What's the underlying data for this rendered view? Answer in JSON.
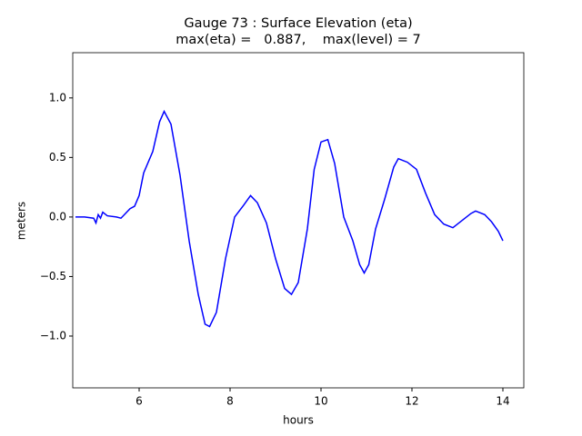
{
  "chart_data": {
    "type": "line",
    "title": [
      "Gauge 73 : Surface Elevation (eta)",
      "max(eta) =   0.887,    max(level) = 7"
    ],
    "xlabel": "hours",
    "ylabel": "meters",
    "x": [
      4.6,
      4.8,
      5.0,
      5.05,
      5.1,
      5.15,
      5.2,
      5.3,
      5.5,
      5.6,
      5.7,
      5.8,
      5.9,
      6.0,
      6.1,
      6.3,
      6.45,
      6.55,
      6.7,
      6.9,
      7.1,
      7.3,
      7.45,
      7.55,
      7.7,
      7.9,
      8.1,
      8.3,
      8.45,
      8.6,
      8.8,
      9.0,
      9.2,
      9.35,
      9.5,
      9.7,
      9.85,
      10.0,
      10.15,
      10.3,
      10.5,
      10.7,
      10.85,
      10.95,
      11.05,
      11.2,
      11.4,
      11.6,
      11.7,
      11.9,
      12.1,
      12.3,
      12.5,
      12.7,
      12.9,
      13.1,
      13.3,
      13.4,
      13.6,
      13.75,
      13.9,
      14.0
    ],
    "series": [
      {
        "name": "eta",
        "color": "#0000ff",
        "values": [
          0.0,
          0.0,
          -0.01,
          -0.05,
          0.02,
          -0.01,
          0.04,
          0.01,
          0.0,
          -0.01,
          0.03,
          0.07,
          0.09,
          0.18,
          0.37,
          0.55,
          0.8,
          0.887,
          0.78,
          0.35,
          -0.2,
          -0.65,
          -0.9,
          -0.92,
          -0.8,
          -0.35,
          0.0,
          0.1,
          0.18,
          0.12,
          -0.05,
          -0.35,
          -0.6,
          -0.65,
          -0.55,
          -0.1,
          0.4,
          0.63,
          0.65,
          0.45,
          0.0,
          -0.2,
          -0.4,
          -0.47,
          -0.4,
          -0.1,
          0.15,
          0.42,
          0.49,
          0.46,
          0.4,
          0.2,
          0.02,
          -0.06,
          -0.09,
          -0.03,
          0.03,
          0.05,
          0.02,
          -0.04,
          -0.12,
          -0.2
        ]
      }
    ],
    "xlim": [
      4.54,
      14.46
    ],
    "ylim": [
      -1.435,
      1.38
    ],
    "xticks": [
      6,
      8,
      10,
      12,
      14
    ],
    "yticks": [
      {
        "value": -1.0,
        "label": "−1.0"
      },
      {
        "value": -0.5,
        "label": "−0.5"
      },
      {
        "value": 0.0,
        "label": "0.0"
      },
      0.5,
      {
        "value": 1.0,
        "label": "1.0"
      }
    ]
  }
}
